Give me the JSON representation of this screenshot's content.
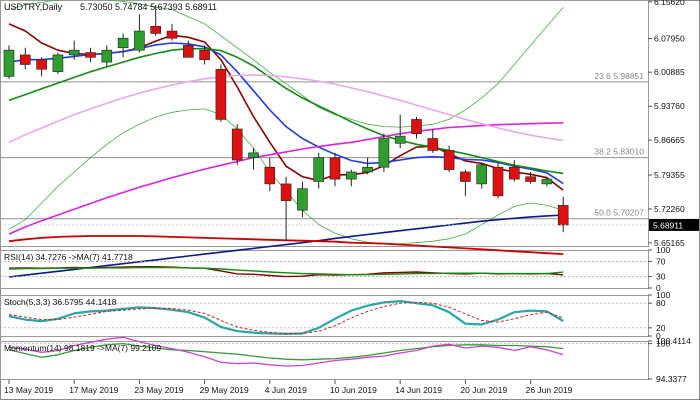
{
  "header": {
    "symbol": "USDTRY,Daily",
    "ohlc": "5.73050 5.74784 5.67393 5.68911"
  },
  "colors": {
    "up": "#2e9e2e",
    "down": "#dd1111",
    "wick": "#222222",
    "ma_darkred": "#8b0000",
    "ma_blue": "#1f3ce0",
    "ma_green": "#138a13",
    "ma_magenta": "#dd22dd",
    "ma_violet": "#e8a8e8",
    "ma_navy": "#0a1a8a",
    "ma_red": "#cc0000",
    "bb": "#4aa84a",
    "fib": "#909090",
    "osc_teal": "#2aa6a6",
    "osc_red": "#cc1111",
    "osc_dash": "#cc2222",
    "mom_green": "#3a9a3a",
    "mom_violet": "#cc44cc"
  },
  "chart_data": [
    {
      "type": "candlestick",
      "title": "USDTRY,Daily",
      "ylim": [
        5.645,
        6.16
      ],
      "yticks": [
        "6.15620",
        "6.07950",
        "6.00885",
        "5.93760",
        "5.86665",
        "5.79355",
        "5.72260",
        "5.65165"
      ],
      "ytick_values": [
        6.1562,
        6.0795,
        6.00885,
        5.9376,
        5.86665,
        5.79355,
        5.7226,
        5.65165
      ],
      "x_labels": [
        "13 May 2019",
        "17 May 2019",
        "23 May 2019",
        "29 May 2019",
        "4 Jun 2019",
        "10 Jun 2019",
        "14 Jun 2019",
        "20 Jun 2019",
        "26 Jun 2019"
      ],
      "x_label_index": [
        0,
        4,
        8,
        12,
        16,
        20,
        24,
        28,
        32
      ],
      "candles": [
        {
          "o": 6.0,
          "h": 6.065,
          "l": 5.995,
          "c": 6.055
        },
        {
          "o": 6.045,
          "h": 6.06,
          "l": 6.015,
          "c": 6.025
        },
        {
          "o": 6.035,
          "h": 6.04,
          "l": 6.0,
          "c": 6.015
        },
        {
          "o": 6.01,
          "h": 6.05,
          "l": 6.005,
          "c": 6.045
        },
        {
          "o": 6.045,
          "h": 6.075,
          "l": 6.035,
          "c": 6.055
        },
        {
          "o": 6.05,
          "h": 6.06,
          "l": 6.03,
          "c": 6.04
        },
        {
          "o": 6.03,
          "h": 6.065,
          "l": 6.02,
          "c": 6.055
        },
        {
          "o": 6.06,
          "h": 6.09,
          "l": 6.04,
          "c": 6.08
        },
        {
          "o": 6.055,
          "h": 6.13,
          "l": 6.05,
          "c": 6.095
        },
        {
          "o": 6.105,
          "h": 6.15,
          "l": 6.085,
          "c": 6.09
        },
        {
          "o": 6.095,
          "h": 6.11,
          "l": 6.075,
          "c": 6.08
        },
        {
          "o": 6.065,
          "h": 6.075,
          "l": 6.04,
          "c": 6.04
        },
        {
          "o": 6.055,
          "h": 6.065,
          "l": 6.025,
          "c": 6.035
        },
        {
          "o": 6.015,
          "h": 6.025,
          "l": 5.905,
          "c": 5.91
        },
        {
          "o": 5.89,
          "h": 5.9,
          "l": 5.815,
          "c": 5.825
        },
        {
          "o": 5.83,
          "h": 5.85,
          "l": 5.805,
          "c": 5.84
        },
        {
          "o": 5.81,
          "h": 5.83,
          "l": 5.76,
          "c": 5.775
        },
        {
          "o": 5.775,
          "h": 5.79,
          "l": 5.655,
          "c": 5.74
        },
        {
          "o": 5.72,
          "h": 5.78,
          "l": 5.705,
          "c": 5.765
        },
        {
          "o": 5.78,
          "h": 5.84,
          "l": 5.765,
          "c": 5.83
        },
        {
          "o": 5.83,
          "h": 5.84,
          "l": 5.77,
          "c": 5.785
        },
        {
          "o": 5.785,
          "h": 5.805,
          "l": 5.77,
          "c": 5.8
        },
        {
          "o": 5.8,
          "h": 5.83,
          "l": 5.795,
          "c": 5.81
        },
        {
          "o": 5.81,
          "h": 5.88,
          "l": 5.8,
          "c": 5.87
        },
        {
          "o": 5.86,
          "h": 5.92,
          "l": 5.85,
          "c": 5.875
        },
        {
          "o": 5.91,
          "h": 5.915,
          "l": 5.87,
          "c": 5.88
        },
        {
          "o": 5.87,
          "h": 5.89,
          "l": 5.84,
          "c": 5.845
        },
        {
          "o": 5.845,
          "h": 5.855,
          "l": 5.8,
          "c": 5.805
        },
        {
          "o": 5.8,
          "h": 5.805,
          "l": 5.75,
          "c": 5.78
        },
        {
          "o": 5.775,
          "h": 5.82,
          "l": 5.765,
          "c": 5.815
        },
        {
          "o": 5.81,
          "h": 5.82,
          "l": 5.745,
          "c": 5.75
        },
        {
          "o": 5.81,
          "h": 5.825,
          "l": 5.78,
          "c": 5.785
        },
        {
          "o": 5.79,
          "h": 5.8,
          "l": 5.775,
          "c": 5.78
        },
        {
          "o": 5.775,
          "h": 5.79,
          "l": 5.77,
          "c": 5.785
        },
        {
          "o": 5.73,
          "h": 5.748,
          "l": 5.674,
          "c": 5.689
        }
      ],
      "moving_averages": [
        {
          "color": "ma_darkred",
          "width": 1.6,
          "values": [
            6.11,
            6.095,
            6.07,
            6.055,
            6.048,
            6.046,
            6.048,
            6.052,
            6.06,
            6.074,
            6.086,
            6.082,
            6.072,
            6.035,
            5.978,
            5.916,
            5.862,
            5.812,
            5.79,
            5.782,
            5.794,
            5.794,
            5.799,
            5.813,
            5.834,
            5.852,
            5.854,
            5.838,
            5.823,
            5.818,
            5.807,
            5.8,
            5.795,
            5.788,
            5.762
          ]
        },
        {
          "color": "ma_blue",
          "width": 1.6,
          "values": [
            6.03,
            6.035,
            6.035,
            6.038,
            6.042,
            6.046,
            6.048,
            6.052,
            6.058,
            6.066,
            6.07,
            6.068,
            6.062,
            6.045,
            6.01,
            5.97,
            5.93,
            5.895,
            5.87,
            5.852,
            5.837,
            5.824,
            5.818,
            5.82,
            5.825,
            5.83,
            5.832,
            5.83,
            5.826,
            5.825,
            5.82,
            5.812,
            5.806,
            5.798,
            5.776
          ]
        },
        {
          "color": "ma_green",
          "width": 1.6,
          "values": [
            5.95,
            5.962,
            5.974,
            5.986,
            5.998,
            6.01,
            6.02,
            6.03,
            6.04,
            6.048,
            6.055,
            6.058,
            6.058,
            6.054,
            6.04,
            6.022,
            5.998,
            5.975,
            5.955,
            5.938,
            5.922,
            5.905,
            5.89,
            5.876,
            5.866,
            5.858,
            5.852,
            5.845,
            5.838,
            5.83,
            5.822,
            5.814,
            5.808,
            5.802,
            5.797
          ]
        },
        {
          "color": "ma_magenta",
          "width": 1.6,
          "values": [
            5.67,
            5.685,
            5.698,
            5.71,
            5.722,
            5.734,
            5.746,
            5.757,
            5.768,
            5.778,
            5.788,
            5.797,
            5.806,
            5.814,
            5.822,
            5.83,
            5.836,
            5.842,
            5.848,
            5.853,
            5.858,
            5.862,
            5.868,
            5.874,
            5.88,
            5.885,
            5.889,
            5.893,
            5.895,
            5.897,
            5.899,
            5.9,
            5.901,
            5.902,
            5.903
          ]
        },
        {
          "color": "ma_violet",
          "width": 1.6,
          "values": [
            5.862,
            5.878,
            5.892,
            5.906,
            5.92,
            5.932,
            5.944,
            5.955,
            5.965,
            5.974,
            5.982,
            5.989,
            5.995,
            5.999,
            6.002,
            6.003,
            6.002,
            5.999,
            5.995,
            5.99,
            5.984,
            5.976,
            5.968,
            5.959,
            5.95,
            5.94,
            5.93,
            5.92,
            5.91,
            5.901,
            5.892,
            5.884,
            5.877,
            5.871,
            5.866
          ]
        },
        {
          "color": "ma_navy",
          "width": 1.6,
          "values": [
            5.58,
            5.584,
            5.588,
            5.592,
            5.596,
            5.6,
            5.604,
            5.608,
            5.612,
            5.616,
            5.62,
            5.624,
            5.628,
            5.632,
            5.636,
            5.64,
            5.644,
            5.648,
            5.652,
            5.656,
            5.661,
            5.665,
            5.669,
            5.673,
            5.677,
            5.681,
            5.685,
            5.689,
            5.693,
            5.697,
            5.7,
            5.703,
            5.706,
            5.708,
            5.71
          ]
        },
        {
          "color": "ma_red",
          "width": 1.8,
          "values": [
            5.655,
            5.659,
            5.662,
            5.664,
            5.665,
            5.666,
            5.666,
            5.666,
            5.666,
            5.665,
            5.664,
            5.663,
            5.662,
            5.661,
            5.66,
            5.659,
            5.658,
            5.657,
            5.656,
            5.655,
            5.654,
            5.652,
            5.651,
            5.65,
            5.648,
            5.646,
            5.644,
            5.642,
            5.64,
            5.638,
            5.636,
            5.634,
            5.632,
            5.63,
            5.628
          ]
        }
      ],
      "bands": {
        "color": "bb",
        "upper": [
          6.14,
          6.15,
          6.155,
          6.16,
          6.162,
          6.162,
          6.16,
          6.157,
          6.152,
          6.145,
          6.14,
          6.125,
          6.11,
          6.085,
          6.06,
          6.035,
          6.008,
          5.985,
          5.96,
          5.935,
          5.92,
          5.91,
          5.9,
          5.895,
          5.894,
          5.896,
          5.9,
          5.91,
          5.93,
          5.955,
          5.985,
          6.025,
          6.065,
          6.105,
          6.145
        ],
        "lower": [
          5.68,
          5.7,
          5.735,
          5.77,
          5.8,
          5.83,
          5.858,
          5.882,
          5.9,
          5.915,
          5.925,
          5.93,
          5.932,
          5.92,
          5.89,
          5.85,
          5.8,
          5.76,
          5.72,
          5.69,
          5.672,
          5.66,
          5.653,
          5.65,
          5.65,
          5.652,
          5.655,
          5.66,
          5.67,
          5.69,
          5.71,
          5.728,
          5.735,
          5.73,
          5.72
        ]
      },
      "fib_levels": [
        {
          "label": "23.6 5.98851",
          "value": 5.98851
        },
        {
          "label": "38.2 5.83010",
          "value": 5.8301
        },
        {
          "label": "50.0 5.70207",
          "value": 5.70207
        }
      ],
      "last_price": "5.68911",
      "last_value": 5.68911
    },
    {
      "type": "line",
      "title": "RSI(14) 34.7276 ->MA(7) 41.7718",
      "ylim": [
        0,
        100
      ],
      "yticks": [
        "100",
        "70",
        "30",
        "0"
      ],
      "ytick_values": [
        100,
        70,
        30,
        0
      ],
      "levels": [
        70,
        30
      ],
      "series": [
        {
          "color": "ma_darkred",
          "width": 1.4,
          "values": [
            52,
            53,
            52,
            53,
            54,
            53,
            54,
            55,
            56,
            56,
            55,
            53,
            52,
            45,
            37,
            36,
            33,
            30,
            31,
            35,
            34,
            35,
            36,
            40,
            41,
            42,
            40,
            38,
            37,
            39,
            37,
            38,
            37,
            38,
            34.7
          ]
        },
        {
          "color": "ma_green",
          "width": 1.4,
          "values": [
            50,
            51,
            51,
            52,
            52,
            52,
            53,
            53,
            54,
            54,
            54,
            53,
            52,
            50,
            47,
            45,
            42,
            40,
            38,
            37,
            36,
            35,
            35,
            36,
            37,
            38,
            38,
            39,
            39,
            39,
            38,
            38,
            38,
            38,
            41.8
          ]
        }
      ]
    },
    {
      "type": "line",
      "title": "Stoch(5,3,3) 36.5795 44.1418",
      "ylim": [
        0,
        100
      ],
      "yticks": [
        "100",
        "80",
        "20",
        "0"
      ],
      "ytick_values": [
        100,
        80,
        20,
        0
      ],
      "levels": [
        80,
        20
      ],
      "series": [
        {
          "color": "osc_teal",
          "width": 2.2,
          "values": [
            48,
            40,
            36,
            42,
            55,
            60,
            62,
            66,
            70,
            68,
            64,
            58,
            45,
            22,
            12,
            8,
            6,
            5,
            6,
            20,
            42,
            62,
            74,
            82,
            85,
            80,
            75,
            58,
            30,
            28,
            40,
            58,
            62,
            60,
            36.6
          ]
        },
        {
          "color": "osc_dash",
          "width": 1,
          "dash": "3,2",
          "values": [
            52,
            46,
            40,
            40,
            46,
            53,
            60,
            63,
            66,
            68,
            67,
            63,
            55,
            38,
            22,
            14,
            9,
            6,
            6,
            12,
            25,
            44,
            60,
            72,
            80,
            82,
            80,
            70,
            54,
            38,
            34,
            42,
            52,
            58,
            44.1
          ]
        }
      ]
    },
    {
      "type": "line",
      "title": "Momentum(14) 98.1819 ->MA(7) 99.2109",
      "ylim": [
        94.3377,
        100.4114
      ],
      "yticks": [
        "100.4114",
        "100",
        "94.3377"
      ],
      "ytick_values": [
        100.4114,
        100,
        94.3377
      ],
      "levels": [
        100
      ],
      "series": [
        {
          "color": "mom_green",
          "width": 1.3,
          "values": [
            99.0,
            98.4,
            97.8,
            98.2,
            98.9,
            99.4,
            99.8,
            100.0,
            99.6,
            99.3,
            99.0,
            98.9,
            98.7,
            98.5,
            98.3,
            98.0,
            97.7,
            97.5,
            97.4,
            97.5,
            97.6,
            97.8,
            98.1,
            98.5,
            98.9,
            99.2,
            99.5,
            99.7,
            99.8,
            99.8,
            99.7,
            99.7,
            99.6,
            99.5,
            99.2
          ]
        },
        {
          "color": "mom_violet",
          "width": 1.3,
          "values": [
            99.4,
            99.1,
            98.6,
            98.9,
            99.7,
            100.2,
            100.7,
            101.0,
            100.3,
            99.7,
            99.2,
            98.6,
            97.9,
            97.0,
            96.8,
            96.9,
            96.6,
            96.4,
            96.5,
            96.9,
            97.3,
            97.5,
            97.8,
            98.0,
            98.5,
            98.9,
            99.6,
            99.9,
            99.3,
            99.6,
            99.4,
            98.9,
            99.5,
            99.0,
            98.2
          ]
        }
      ]
    }
  ]
}
